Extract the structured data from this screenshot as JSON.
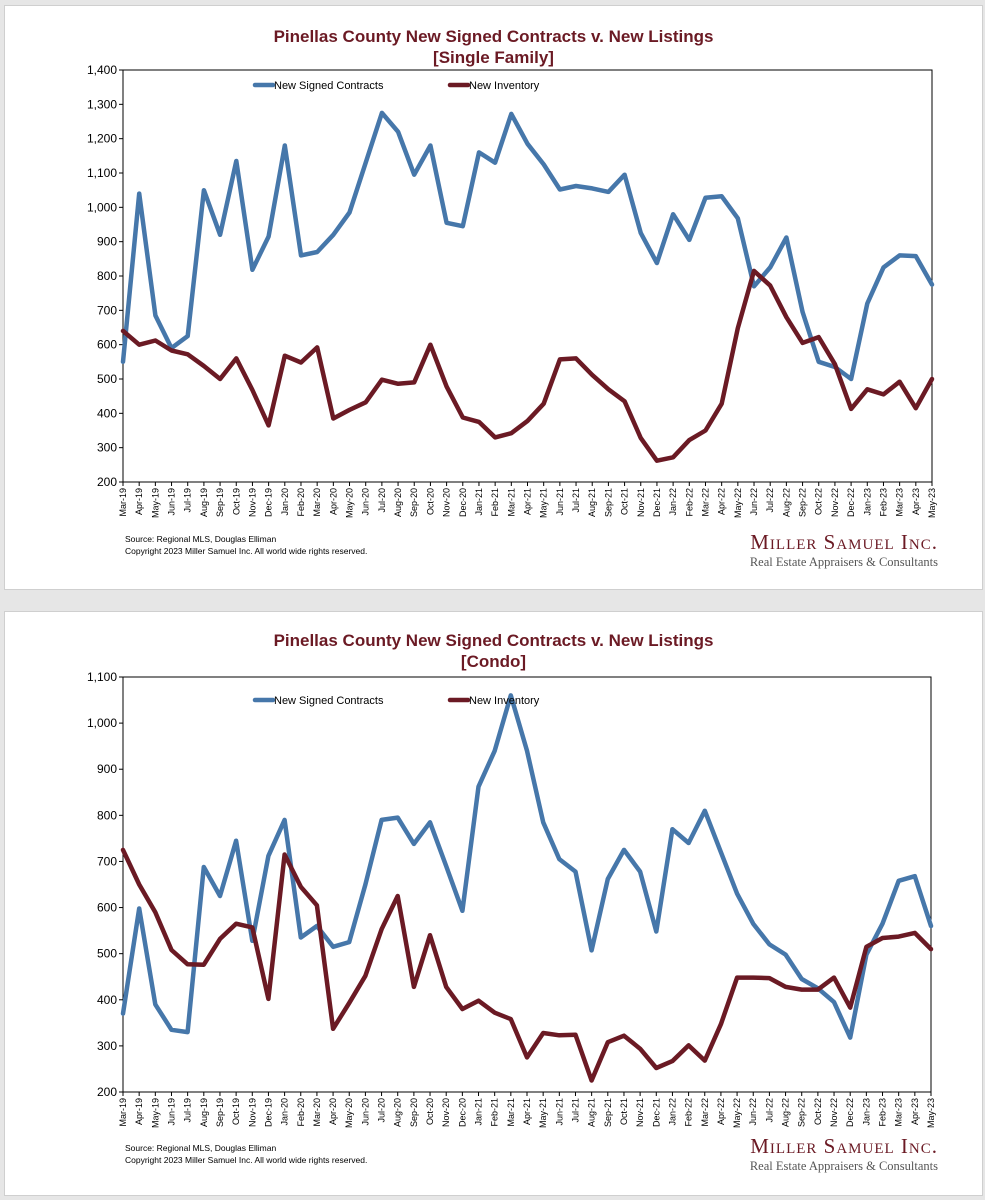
{
  "colors": {
    "contracts": "#4677aa",
    "inventory": "#6b1a24",
    "title": "#6b1a24"
  },
  "chart_data": [
    {
      "type": "line",
      "title": "Pinellas County New Signed Contracts v. New Listings",
      "subtitle": "[Single Family]",
      "ylim": [
        200,
        1400
      ],
      "yticks": [
        "200",
        "300",
        "400",
        "500",
        "600",
        "700",
        "800",
        "900",
        "1,000",
        "1,100",
        "1,200",
        "1,300",
        "1,400"
      ],
      "categories": [
        "Mar-19",
        "Apr-19",
        "May-19",
        "Jun-19",
        "Jul-19",
        "Aug-19",
        "Sep-19",
        "Oct-19",
        "Nov-19",
        "Dec-19",
        "Jan-20",
        "Feb-20",
        "Mar-20",
        "Apr-20",
        "May-20",
        "Jun-20",
        "Jul-20",
        "Aug-20",
        "Sep-20",
        "Oct-20",
        "Nov-20",
        "Dec-20",
        "Jan-21",
        "Feb-21",
        "Mar-21",
        "Apr-21",
        "May-21",
        "Jun-21",
        "Jul-21",
        "Aug-21",
        "Sep-21",
        "Oct-21",
        "Nov-21",
        "Dec-21",
        "Jan-22",
        "Feb-22",
        "Mar-22",
        "Apr-22",
        "May-22",
        "Jun-22",
        "Jul-22",
        "Aug-22",
        "Sep-22",
        "Oct-22",
        "Nov-22",
        "Dec-22",
        "Jan-23",
        "Feb-23",
        "Mar-23",
        "Apr-23",
        "May-23"
      ],
      "grid": false,
      "legend": "top-center",
      "series": [
        {
          "name": "New Signed Contracts",
          "values": [
            550,
            1040,
            685,
            590,
            625,
            1050,
            920,
            1135,
            818,
            915,
            1180,
            860,
            870,
            920,
            985,
            1130,
            1275,
            1220,
            1095,
            1180,
            955,
            945,
            1160,
            1130,
            1272,
            1185,
            1125,
            1052,
            1062,
            1055,
            1045,
            1095,
            925,
            838,
            980,
            905,
            1028,
            1032,
            968,
            770,
            825,
            912,
            695,
            550,
            535,
            500,
            720,
            825,
            860,
            858,
            775
          ]
        },
        {
          "name": "New Inventory",
          "values": [
            640,
            600,
            612,
            583,
            572,
            538,
            500,
            560,
            468,
            365,
            568,
            548,
            592,
            385,
            410,
            432,
            498,
            486,
            490,
            600,
            478,
            388,
            375,
            330,
            342,
            378,
            428,
            557,
            560,
            512,
            470,
            435,
            328,
            262,
            272,
            322,
            350,
            428,
            648,
            815,
            772,
            680,
            605,
            622,
            543,
            413,
            470,
            455,
            492,
            415,
            500
          ]
        }
      ],
      "source": "Source: Regional MLS, Douglas Elliman",
      "copyright": "Copyright 2023 Miller Samuel Inc.  All world wide rights reserved.",
      "brand_name": "Miller Samuel Inc.",
      "brand_tagline": "Real Estate Appraisers & Consultants"
    },
    {
      "type": "line",
      "title": "Pinellas County New Signed Contracts v. New Listings",
      "subtitle": "[Condo]",
      "ylim": [
        200,
        1100
      ],
      "yticks": [
        "200",
        "300",
        "400",
        "500",
        "600",
        "700",
        "800",
        "900",
        "1,000",
        "1,100"
      ],
      "categories": [
        "Mar-19",
        "Apr-19",
        "May-19",
        "Jun-19",
        "Jul-19",
        "Aug-19",
        "Sep-19",
        "Oct-19",
        "Nov-19",
        "Dec-19",
        "Jan-20",
        "Feb-20",
        "Mar-20",
        "Apr-20",
        "May-20",
        "Jun-20",
        "Jul-20",
        "Aug-20",
        "Sep-20",
        "Oct-20",
        "Nov-20",
        "Dec-20",
        "Jan-21",
        "Feb-21",
        "Mar-21",
        "Apr-21",
        "May-21",
        "Jun-21",
        "Jul-21",
        "Aug-21",
        "Sep-21",
        "Oct-21",
        "Nov-21",
        "Dec-21",
        "Jan-22",
        "Feb-22",
        "Mar-22",
        "Apr-22",
        "May-22",
        "Jun-22",
        "Jul-22",
        "Aug-22",
        "Sep-22",
        "Oct-22",
        "Nov-22",
        "Dec-22",
        "Jan-23",
        "Feb-23",
        "Mar-23",
        "Apr-23",
        "May-23"
      ],
      "grid": false,
      "legend": "top-center",
      "series": [
        {
          "name": "New Signed Contracts",
          "values": [
            370,
            598,
            390,
            335,
            330,
            688,
            625,
            745,
            528,
            712,
            790,
            535,
            560,
            515,
            525,
            650,
            790,
            795,
            738,
            785,
            690,
            593,
            862,
            940,
            1060,
            940,
            785,
            705,
            678,
            507,
            662,
            725,
            678,
            548,
            770,
            740,
            810,
            720,
            630,
            565,
            520,
            498,
            445,
            425,
            395,
            318,
            498,
            565,
            658,
            668,
            560
          ]
        },
        {
          "name": "New Inventory",
          "values": [
            725,
            650,
            590,
            508,
            477,
            476,
            532,
            565,
            557,
            402,
            715,
            645,
            605,
            337,
            393,
            452,
            553,
            625,
            428,
            540,
            428,
            380,
            398,
            372,
            358,
            275,
            328,
            323,
            324,
            225,
            308,
            322,
            294,
            252,
            267,
            301,
            268,
            347,
            448,
            448,
            447,
            428,
            422,
            422,
            448,
            383,
            515,
            534,
            537,
            545,
            510
          ]
        }
      ],
      "source": "Source: Regional MLS, Douglas Elliman",
      "copyright": "Copyright 2023 Miller Samuel Inc.  All world wide rights reserved.",
      "brand_name": "Miller Samuel Inc.",
      "brand_tagline": "Real Estate Appraisers & Consultants"
    }
  ]
}
